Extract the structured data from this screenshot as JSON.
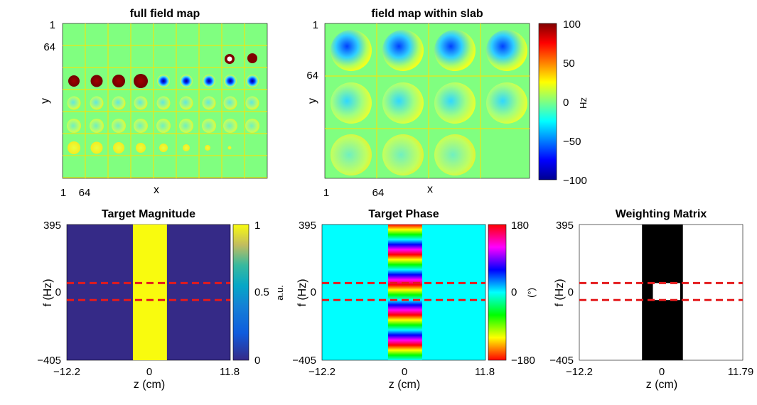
{
  "chart_data": [
    {
      "type": "heatmap",
      "title": "full field map",
      "xlabel": "x",
      "ylabel": "y",
      "xticks": [
        "1",
        "64"
      ],
      "yticks": [
        "1",
        "64"
      ],
      "grid_cols": 9,
      "grid_rows": 7,
      "colormap": "jet",
      "clim": [
        -100,
        100
      ]
    },
    {
      "type": "heatmap",
      "title": "field map within slab",
      "xlabel": "x",
      "ylabel": "y",
      "xticks": [
        "1",
        "64"
      ],
      "yticks": [
        "1",
        "64"
      ],
      "grid_cols": 4,
      "grid_rows": 3,
      "colormap": "jet",
      "clim": [
        -100,
        100
      ],
      "colorbar": {
        "label": "Hz",
        "ticks": [
          "100",
          "50",
          "0",
          "−50",
          "−100"
        ],
        "values": [
          100,
          50,
          0,
          -50,
          -100
        ]
      }
    },
    {
      "type": "heatmap",
      "title": "Target Magnitude",
      "xlabel": "z (cm)",
      "ylabel": "f (Hz)",
      "xticks": [
        "−12.2",
        "0",
        "11.8"
      ],
      "yticks": [
        "395",
        "0",
        "−405"
      ],
      "xlim": [
        -12.2,
        11.8
      ],
      "ylim": [
        -405,
        395
      ],
      "band_z": [
        -2.5,
        2.5
      ],
      "band_value": 1,
      "background_value": 0,
      "dashed_f": [
        50,
        -50
      ],
      "colormap": "parula",
      "colorbar": {
        "label": "a.u.",
        "ticks": [
          "1",
          "0.5",
          "0"
        ],
        "values": [
          1,
          0.5,
          0
        ]
      }
    },
    {
      "type": "heatmap",
      "title": "Target Phase",
      "xlabel": "z (cm)",
      "ylabel": "f (Hz)",
      "xticks": [
        "−12.2",
        "0",
        "11.8"
      ],
      "yticks": [
        "395",
        "0",
        "−405"
      ],
      "xlim": [
        -12.2,
        11.8
      ],
      "ylim": [
        -405,
        395
      ],
      "band_z": [
        -2.5,
        2.5
      ],
      "background_value": 0,
      "dashed_f": [
        50,
        -50
      ],
      "colormap": "hsv",
      "colorbar": {
        "label": "(°)",
        "ticks": [
          "180",
          "0",
          "−180"
        ],
        "values": [
          180,
          0,
          -180
        ]
      }
    },
    {
      "type": "heatmap",
      "title": "Weighting Matrix",
      "xlabel": "z (cm)",
      "ylabel": "f (Hz)",
      "xticks": [
        "−12.2",
        "0",
        "11.79"
      ],
      "yticks": [
        "395",
        "0",
        "−405"
      ],
      "xlim": [
        -12.2,
        11.79
      ],
      "ylim": [
        -405,
        395
      ],
      "band_z": [
        -3.0,
        3.0
      ],
      "hole_z": [
        -1.4,
        2.6
      ],
      "dashed_f": [
        50,
        -50
      ],
      "colormap": "gray"
    }
  ]
}
